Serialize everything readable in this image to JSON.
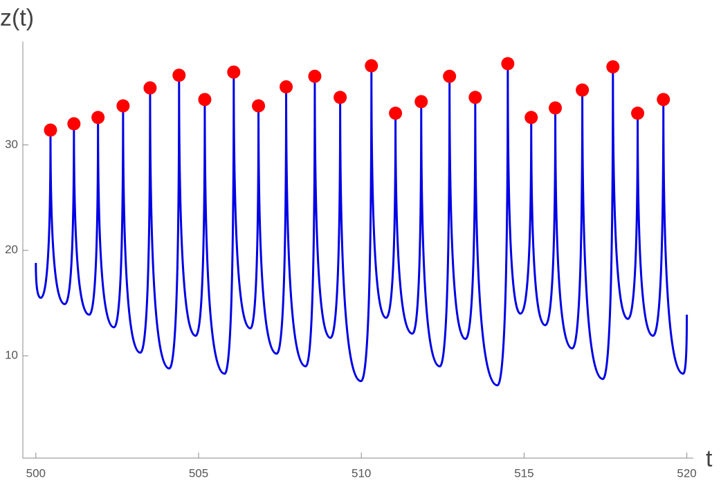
{
  "chart_data": {
    "type": "line",
    "y_label": "z(t)",
    "x_label": "t",
    "xlim": [
      499.6,
      520.2
    ],
    "ylim": [
      0.3,
      39.8
    ],
    "xticks": [
      500,
      505,
      510,
      515,
      520
    ],
    "yticks": [
      10,
      20,
      30
    ],
    "series": [
      {
        "name": "z",
        "color": "#0000e6",
        "x": [
          500.0,
          500.15,
          500.45,
          500.89,
          501.17,
          501.64,
          501.91,
          502.4,
          502.68,
          503.21,
          503.51,
          504.1,
          504.4,
          504.91,
          505.19,
          505.8,
          506.08,
          506.59,
          506.84,
          507.4,
          507.69,
          508.29,
          508.57,
          509.05,
          509.35,
          509.99,
          510.31,
          510.76,
          511.05,
          511.57,
          511.84,
          512.41,
          512.71,
          513.2,
          513.5,
          514.18,
          514.5,
          514.89,
          515.22,
          515.65,
          515.96,
          516.48,
          516.79,
          517.42,
          517.73,
          518.19,
          518.49,
          518.96,
          519.28,
          519.89,
          520.0
        ],
        "values": [
          18.8,
          15.5,
          31.4,
          14.9,
          32.0,
          13.9,
          32.6,
          12.7,
          33.7,
          10.3,
          35.4,
          8.8,
          36.6,
          11.9,
          34.3,
          8.3,
          36.9,
          12.6,
          33.7,
          10.2,
          35.5,
          9.0,
          36.5,
          11.7,
          34.5,
          7.6,
          37.5,
          13.6,
          33.0,
          12.1,
          34.1,
          9.0,
          36.5,
          11.6,
          34.5,
          7.2,
          37.7,
          14.0,
          32.6,
          12.9,
          33.5,
          10.7,
          35.2,
          7.8,
          37.4,
          13.5,
          33.0,
          11.9,
          34.3,
          8.3,
          13.9
        ]
      },
      {
        "name": "maxima",
        "type": "scatter",
        "color": "#ff0000",
        "x": [
          500.45,
          501.17,
          501.91,
          502.68,
          503.51,
          504.4,
          505.19,
          506.08,
          506.84,
          507.69,
          508.57,
          509.35,
          510.31,
          511.05,
          511.84,
          512.71,
          513.5,
          514.5,
          515.22,
          515.96,
          516.79,
          517.73,
          518.49,
          519.28
        ],
        "values": [
          31.4,
          32.0,
          32.6,
          33.7,
          35.4,
          36.6,
          34.3,
          36.9,
          33.7,
          35.5,
          36.5,
          34.5,
          37.5,
          33.0,
          34.1,
          36.5,
          34.5,
          37.7,
          32.6,
          33.5,
          35.2,
          37.4,
          33.0,
          34.3
        ]
      }
    ]
  }
}
